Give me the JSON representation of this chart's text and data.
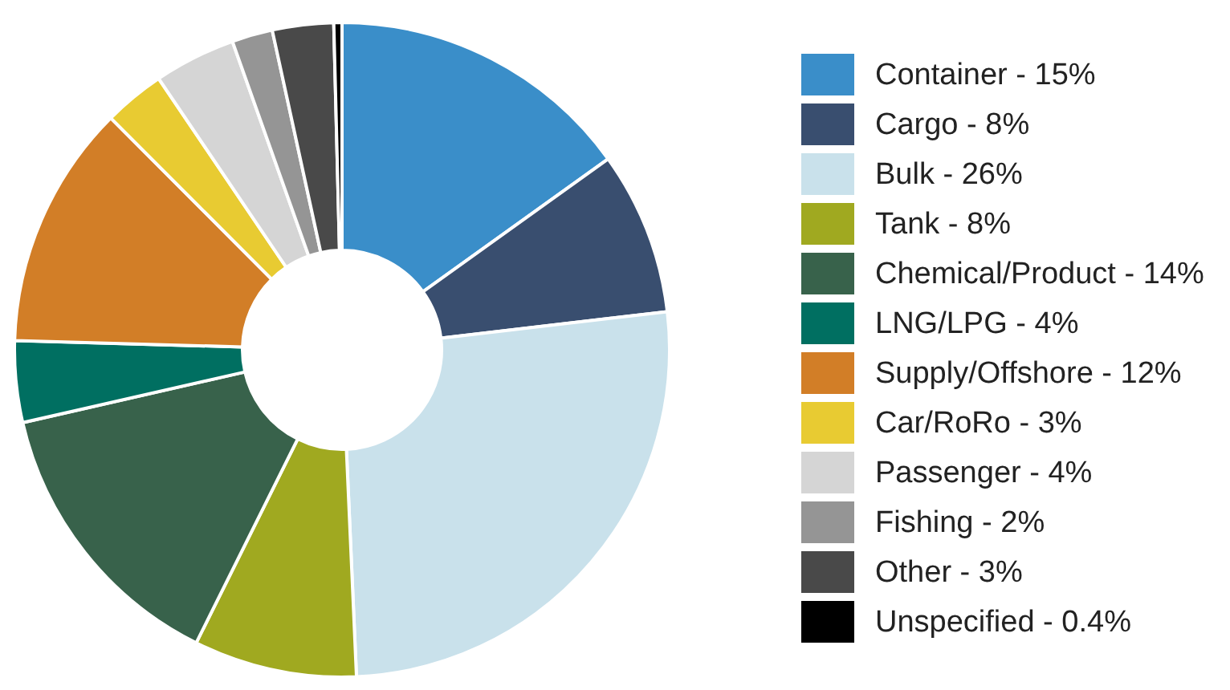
{
  "chart_data": {
    "type": "donut",
    "categories": [
      "Container - 15%",
      "Cargo - 8%",
      "Bulk - 26%",
      "Tank - 8%",
      "Chemical/Product - 14%",
      "LNG/LPG - 4%",
      "Supply/Offshore - 12%",
      "Car/RoRo - 3%",
      "Passenger - 4%",
      "Fishing - 2%",
      "Other - 3%",
      "Unspecified - 0.4%"
    ],
    "values": [
      15,
      8,
      26,
      8,
      14,
      4,
      12,
      3,
      4,
      2,
      3,
      0.4
    ],
    "colors": [
      "#3a8ec9",
      "#394e6f",
      "#c9e1eb",
      "#a0a920",
      "#38624b",
      "#006f61",
      "#d27e27",
      "#e8cb32",
      "#d5d5d5",
      "#959595",
      "#494949",
      "#000000"
    ],
    "legend": "right"
  }
}
